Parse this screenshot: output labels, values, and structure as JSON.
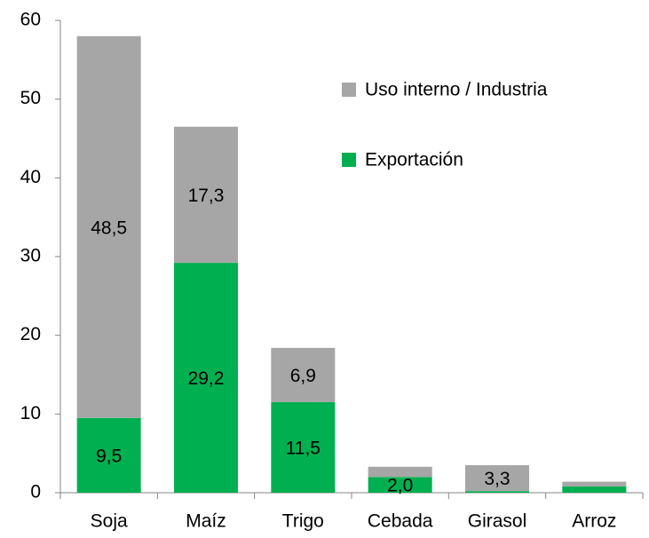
{
  "chart_data": {
    "type": "stacked_bar",
    "categories": [
      "Soja",
      "Maíz",
      "Trigo",
      "Cebada",
      "Girasol",
      "Arroz"
    ],
    "series": [
      {
        "name": "Exportación",
        "color": "#00b050",
        "values": [
          9.5,
          29.2,
          11.5,
          2.0,
          0.2,
          0.8
        ],
        "value_labels": [
          "9,5",
          "29,2",
          "11,5",
          "2,0",
          null,
          null
        ]
      },
      {
        "name": "Uso interno / Industria",
        "color": "#a6a6a6",
        "values": [
          48.5,
          17.3,
          6.9,
          1.3,
          3.3,
          0.6
        ],
        "value_labels": [
          "48,5",
          "17,3",
          "6,9",
          null,
          "3,3",
          null
        ]
      }
    ],
    "ylim": [
      0,
      60
    ],
    "yticks": [
      0,
      10,
      20,
      30,
      40,
      50,
      60
    ],
    "grid": false,
    "legend": "upper right"
  }
}
